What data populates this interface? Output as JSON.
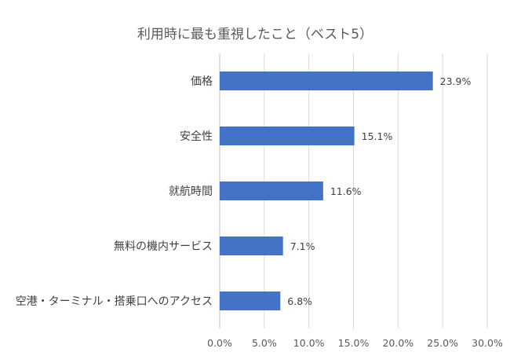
{
  "chart_data": {
    "type": "bar",
    "orientation": "horizontal",
    "title": "利用時に最も重視したこと（ベスト5）",
    "categories": [
      "価格",
      "安全性",
      "就航時間",
      "無料の機内サービス",
      "空港・ターミナル・搭乗口へのアクセス"
    ],
    "values": [
      23.9,
      15.1,
      11.6,
      7.1,
      6.8
    ],
    "data_labels": [
      "23.9%",
      "15.1%",
      "11.6%",
      "7.1%",
      "6.8%"
    ],
    "x_ticks": [
      0,
      5,
      10,
      15,
      20,
      25,
      30
    ],
    "x_tick_labels": [
      "0.0%",
      "5.0%",
      "10.0%",
      "15.0%",
      "20.0%",
      "25.0%",
      "30.0%"
    ],
    "xlim": [
      0,
      30
    ],
    "grid": true,
    "legend": "none",
    "bar_color": "#4472C4"
  }
}
